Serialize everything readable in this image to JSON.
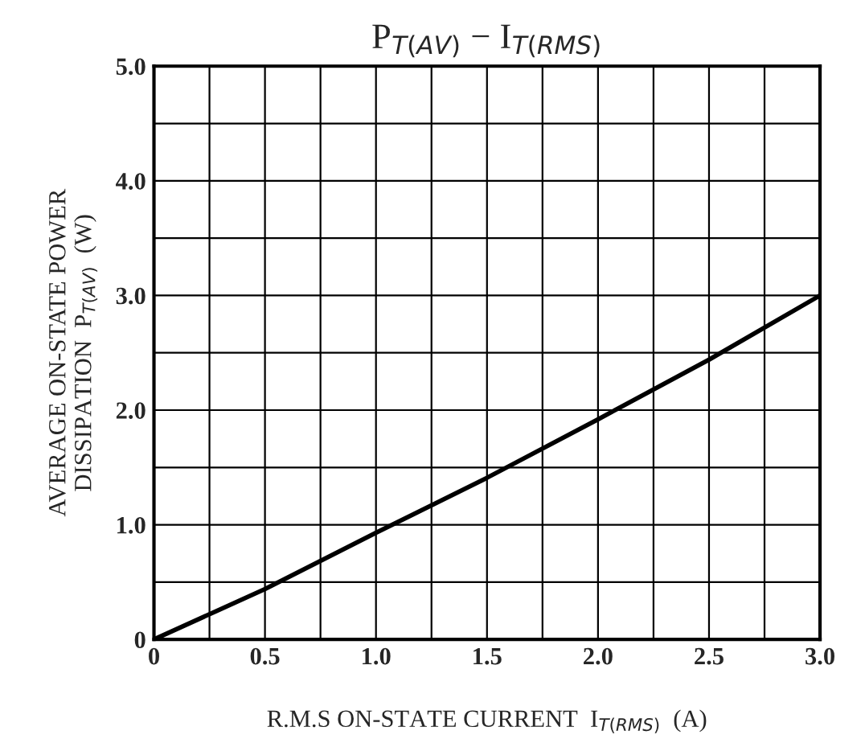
{
  "chart_data": {
    "type": "line",
    "title": "P$_{T(AV)}$ − I$_{T(RMS)}$",
    "xlabel": "R.M.S ON-STATE CURRENT  I$_{T(RMS)}$  (A)",
    "ylabel": "AVERAGE ON-STATE POWER\nDISSIPATION  P$_{T(AV)}$  (W)",
    "x": [
      0,
      0.5,
      1.0,
      1.5,
      2.0,
      2.5,
      3.0
    ],
    "series": [
      {
        "color": "#000000",
        "values": [
          0,
          0.44,
          0.93,
          1.41,
          1.92,
          2.44,
          3.0
        ]
      }
    ],
    "xlim": [
      0,
      3.0
    ],
    "ylim": [
      0,
      5.0
    ],
    "xticks": [
      0,
      {
        "value": 0.25,
        "label": null
      },
      0.5,
      {
        "value": 0.75,
        "label": null
      },
      {
        "value": 1.0,
        "label": "1.0"
      },
      {
        "value": 1.25,
        "label": null
      },
      1.5,
      {
        "value": 1.75,
        "label": null
      },
      {
        "value": 2.0,
        "label": "2.0"
      },
      {
        "value": 2.25,
        "label": null
      },
      2.5,
      {
        "value": 2.75,
        "label": null
      },
      {
        "value": 3.0,
        "label": "3.0"
      }
    ],
    "yticks": [
      0,
      {
        "value": 0.5,
        "label": null
      },
      {
        "value": 1.0,
        "label": "1.0"
      },
      {
        "value": 1.5,
        "label": null
      },
      {
        "value": 2.0,
        "label": "2.0"
      },
      {
        "value": 2.5,
        "label": null
      },
      {
        "value": 3.0,
        "label": "3.0"
      },
      {
        "value": 3.5,
        "label": null
      },
      {
        "value": 4.0,
        "label": "4.0"
      },
      {
        "value": 4.5,
        "label": null
      },
      {
        "value": 5.0,
        "label": "5.0"
      }
    ],
    "grid": true,
    "marker": "none",
    "line_style": "solid"
  }
}
